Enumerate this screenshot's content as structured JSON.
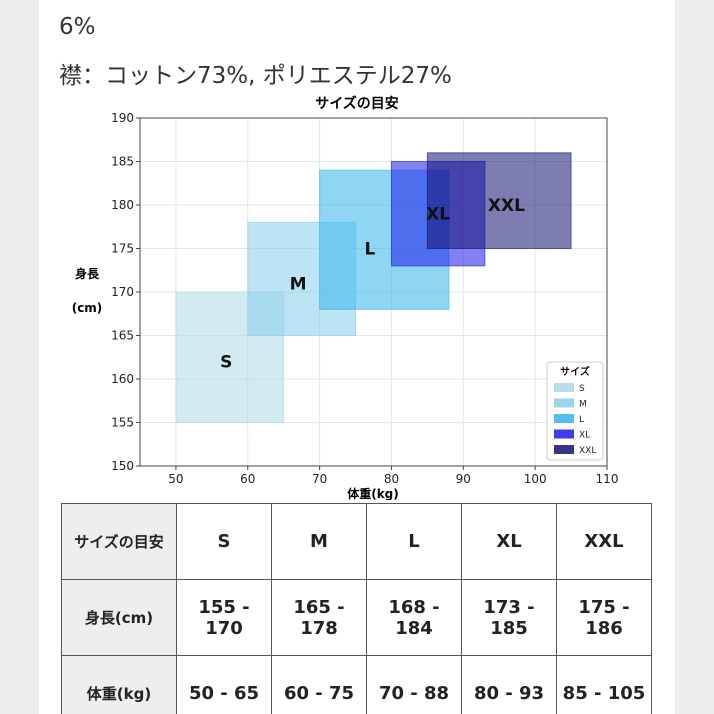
{
  "description_lines": [
    "6%",
    "襟：コットン73%, ポリエステル27%"
  ],
  "chart_data": {
    "type": "rectangle",
    "title": "サイズの目安",
    "xlabel": "体重(kg)",
    "ylabel": "身長\n(cm)",
    "xlim": [
      45,
      110
    ],
    "ylim": [
      150,
      190
    ],
    "xticks": [
      50,
      60,
      70,
      80,
      90,
      100,
      110
    ],
    "yticks": [
      150,
      155,
      160,
      165,
      170,
      175,
      180,
      185,
      190
    ],
    "grid": true,
    "legend": {
      "title": "サイズ",
      "position": "lower-right"
    },
    "series": [
      {
        "name": "S",
        "weight": [
          50,
          65
        ],
        "height": [
          155,
          170
        ],
        "color": "#add8e6",
        "label_at": [
          57,
          162
        ]
      },
      {
        "name": "M",
        "weight": [
          60,
          75
        ],
        "height": [
          165,
          178
        ],
        "color": "#87ceeb",
        "label_at": [
          67,
          171
        ]
      },
      {
        "name": "L",
        "weight": [
          70,
          88
        ],
        "height": [
          168,
          184
        ],
        "color": "#33b5ec",
        "label_at": [
          77,
          175
        ]
      },
      {
        "name": "XL",
        "weight": [
          80,
          93
        ],
        "height": [
          173,
          185
        ],
        "color": "#1a1ae6",
        "label_at": [
          86.5,
          179
        ]
      },
      {
        "name": "XXL",
        "weight": [
          85,
          105
        ],
        "height": [
          175,
          186
        ],
        "color": "#131373",
        "label_at": [
          96,
          180
        ]
      }
    ]
  },
  "table": {
    "header_label": "サイズの目安",
    "sizes": [
      "S",
      "M",
      "L",
      "XL",
      "XXL"
    ],
    "rows": [
      {
        "label": "身長(cm)",
        "values": [
          "155 - 170",
          "165 - 178",
          "168 - 184",
          "173 - 185",
          "175 - 186"
        ]
      },
      {
        "label": "体重(kg)",
        "values": [
          "50 - 65",
          "60 - 75",
          "70 - 88",
          "80 - 93",
          "85 - 105"
        ]
      }
    ]
  }
}
